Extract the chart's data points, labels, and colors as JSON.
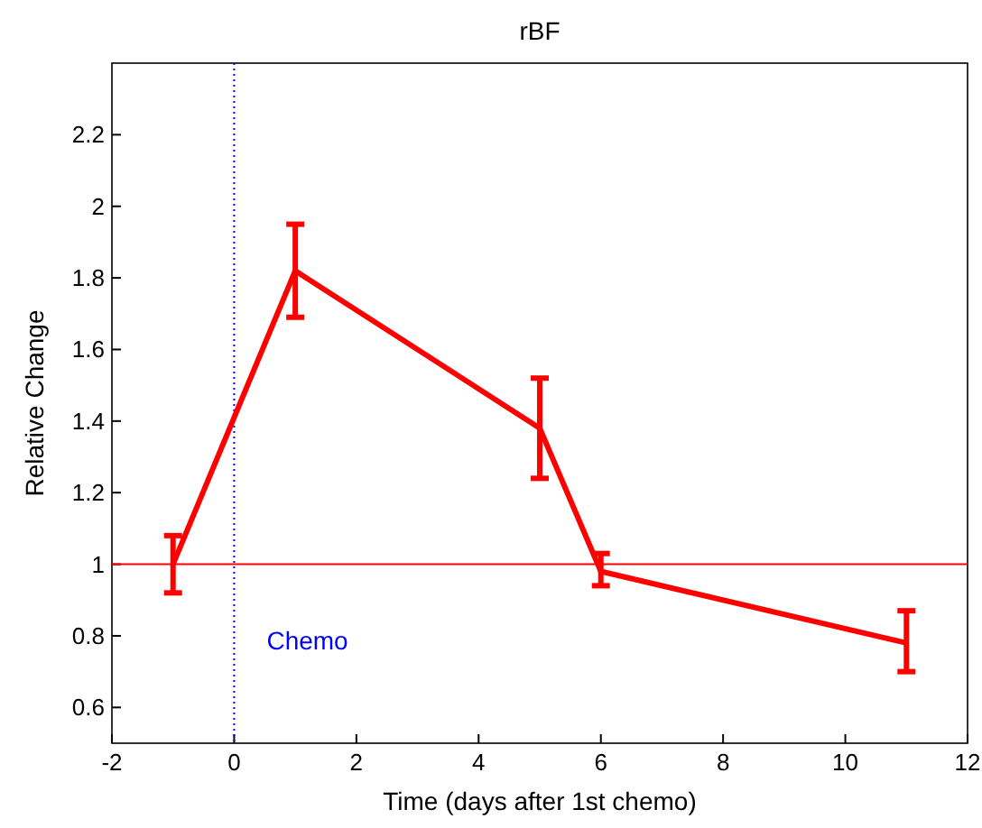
{
  "chart_data": {
    "type": "line",
    "title": "rBF",
    "xlabel": "Time (days after 1st chemo)",
    "ylabel": "Relative Change",
    "x": [
      -1,
      1,
      5,
      6,
      11
    ],
    "series": [
      {
        "color": "#ff0000",
        "values": [
          1.0,
          1.82,
          1.38,
          0.98,
          0.78
        ],
        "errors": [
          [
            0.92,
            1.08
          ],
          [
            1.69,
            1.95
          ],
          [
            1.24,
            1.52
          ],
          [
            0.94,
            1.03
          ],
          [
            0.7,
            0.87
          ]
        ]
      }
    ],
    "xlim": [
      -2,
      12
    ],
    "xticks": [
      -2,
      0,
      2,
      4,
      6,
      8,
      10,
      12
    ],
    "ylim": [
      0.5,
      2.4
    ],
    "yticks": [
      0.6,
      0.8,
      1,
      1.2,
      1.4,
      1.6,
      1.8,
      2,
      2.2
    ],
    "ref_lines": [
      {
        "axis": "y",
        "value": 1,
        "color": "#ff0000",
        "line_style": "solid"
      },
      {
        "axis": "x",
        "value": 0,
        "label": "Chemo",
        "color": "#0000ff",
        "line_style": "dotted"
      }
    ],
    "marker": "none",
    "line_style": "solid"
  }
}
